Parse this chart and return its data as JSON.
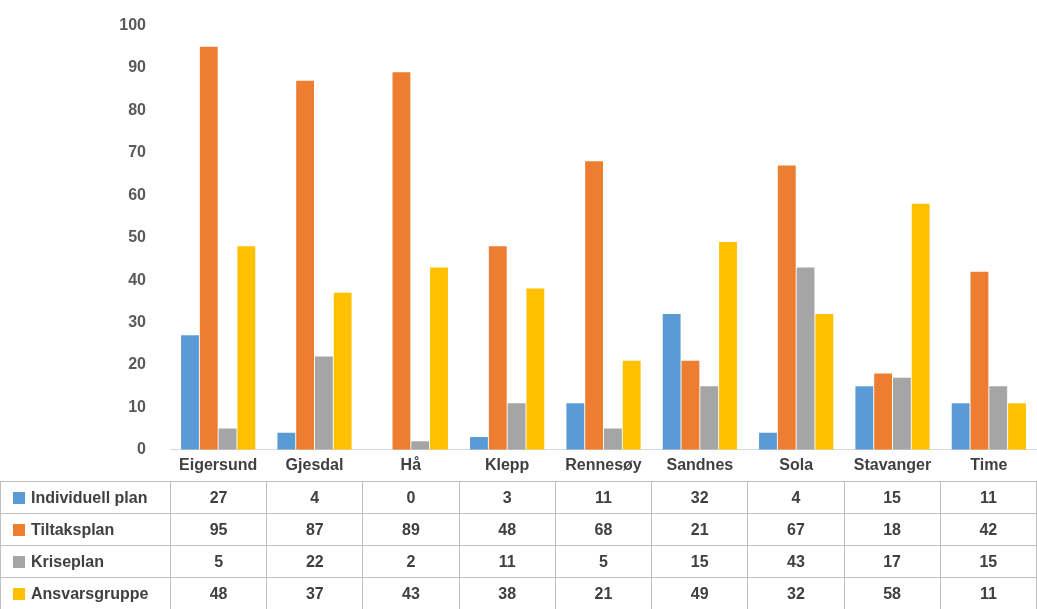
{
  "chart_data": {
    "type": "bar",
    "categories": [
      "Eigersund",
      "Gjesdal",
      "Hå",
      "Klepp",
      "Rennesøy",
      "Sandnes",
      "Sola",
      "Stavanger",
      "Time"
    ],
    "series": [
      {
        "name": "Individuell plan",
        "color": "#5b9bd5",
        "values": [
          27,
          4,
          0,
          3,
          11,
          32,
          4,
          15,
          11
        ]
      },
      {
        "name": "Tiltaksplan",
        "color": "#ed7d31",
        "values": [
          95,
          87,
          89,
          48,
          68,
          21,
          67,
          18,
          42
        ]
      },
      {
        "name": "Kriseplan",
        "color": "#a5a5a5",
        "values": [
          5,
          22,
          2,
          11,
          5,
          15,
          43,
          17,
          15
        ]
      },
      {
        "name": "Ansvarsgruppe",
        "color": "#ffc000",
        "values": [
          48,
          37,
          43,
          38,
          21,
          49,
          32,
          58,
          11
        ]
      }
    ],
    "ylim": [
      0,
      100
    ],
    "yticks": [
      0,
      10,
      20,
      30,
      40,
      50,
      60,
      70,
      80,
      90,
      100
    ],
    "grid": false,
    "legend": "bottom left",
    "data_labels": true
  }
}
